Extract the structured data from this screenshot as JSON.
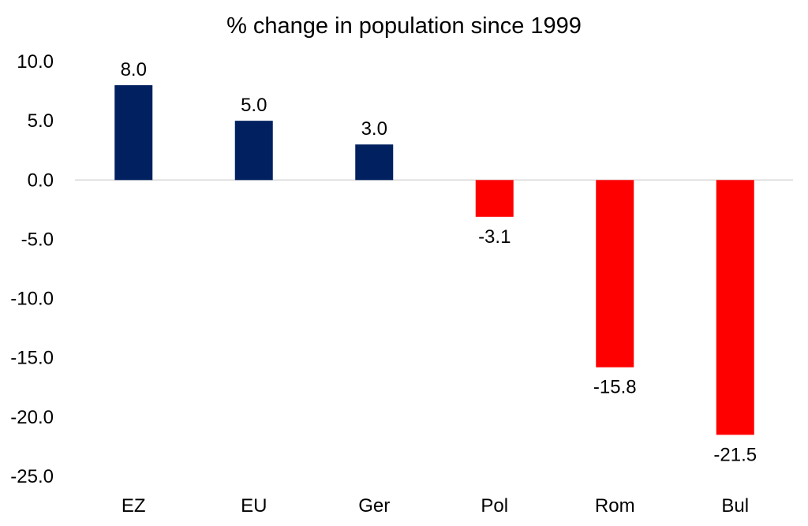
{
  "chart_data": {
    "type": "bar",
    "title": "% change in population since 1999",
    "xlabel": "",
    "ylabel": "",
    "categories": [
      "EZ",
      "EU",
      "Ger",
      "Pol",
      "Rom",
      "Bul"
    ],
    "values": [
      8.0,
      5.0,
      3.0,
      -3.1,
      -15.8,
      -21.5
    ],
    "data_labels": [
      "8.0",
      "5.0",
      "3.0",
      "-3.1",
      "-15.8",
      "-21.5"
    ],
    "ylim": [
      -25,
      10
    ],
    "y_ticks": [
      10,
      5,
      0,
      -5,
      -10,
      -15,
      -20,
      -25
    ],
    "y_tick_labels": [
      "10.0",
      "5.0",
      "0.0",
      "-5.0",
      "-10.0",
      "-15.0",
      "-20.0",
      "-25.0"
    ],
    "grid": false,
    "legend": "none",
    "colors": {
      "positive": "#002060",
      "negative": "#FF0000",
      "zero_line": "#d9d9d9"
    }
  }
}
